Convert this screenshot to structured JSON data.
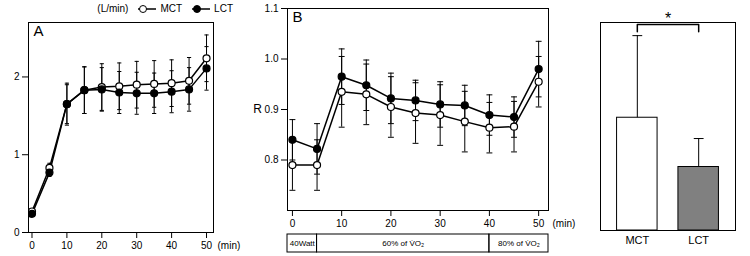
{
  "chart_data": [
    {
      "type": "line",
      "title": "A",
      "y_label": "(L/min)",
      "x_label": "(min)",
      "x": [
        0,
        5,
        10,
        15,
        20,
        25,
        30,
        35,
        40,
        45,
        50
      ],
      "series": [
        {
          "name": "MCT",
          "color": "#000000",
          "marker": "circle_open",
          "values": [
            0.27,
            0.83,
            1.65,
            1.83,
            1.87,
            1.88,
            1.9,
            1.91,
            1.92,
            1.95,
            2.24
          ],
          "errors": [
            0.03,
            0.06,
            0.27,
            0.3,
            0.3,
            0.3,
            0.3,
            0.3,
            0.3,
            0.3,
            0.3
          ]
        },
        {
          "name": "LCT",
          "color": "#000000",
          "marker": "circle_filled",
          "values": [
            0.24,
            0.77,
            1.65,
            1.83,
            1.84,
            1.8,
            1.79,
            1.79,
            1.81,
            1.84,
            2.11
          ],
          "errors": [
            0.03,
            0.05,
            0.25,
            0.3,
            0.28,
            0.27,
            0.27,
            0.26,
            0.27,
            0.28,
            0.28
          ]
        }
      ],
      "xlim": [
        -1,
        52
      ],
      "xticks": [
        0,
        10,
        20,
        30,
        40,
        50
      ],
      "ylim": [
        0,
        2.7
      ],
      "yticks": [
        0,
        1,
        2
      ],
      "legend": "top-right"
    },
    {
      "type": "line",
      "title": "B",
      "y_label": "R",
      "x_label": "(min)",
      "x": [
        0,
        5,
        10,
        15,
        20,
        25,
        30,
        35,
        40,
        45,
        50
      ],
      "series": [
        {
          "name": "MCT",
          "color": "#000000",
          "marker": "circle_open",
          "values": [
            0.79,
            0.79,
            0.935,
            0.93,
            0.905,
            0.893,
            0.889,
            0.876,
            0.864,
            0.866,
            0.955
          ],
          "errors": [
            0.05,
            0.05,
            0.07,
            0.06,
            0.06,
            0.06,
            0.06,
            0.06,
            0.05,
            0.05,
            0.05
          ]
        },
        {
          "name": "LCT",
          "color": "#000000",
          "marker": "circle_filled",
          "values": [
            0.84,
            0.822,
            0.965,
            0.948,
            0.922,
            0.918,
            0.91,
            0.908,
            0.889,
            0.885,
            0.98
          ],
          "errors": [
            0.04,
            0.05,
            0.055,
            0.05,
            0.05,
            0.04,
            0.045,
            0.04,
            0.04,
            0.04,
            0.055
          ]
        }
      ],
      "xlim": [
        -1,
        52
      ],
      "xticks": [
        0,
        10,
        20,
        30,
        40,
        50
      ],
      "ylim": [
        0.7,
        1.1
      ],
      "yticks": [
        0.8,
        0.9,
        {
          "value": 1,
          "label": "1.0"
        },
        1.1
      ],
      "phases": [
        {
          "label": "40Watt",
          "start": -1,
          "end": 5
        },
        {
          "label": "60% of V̇O₂",
          "start": 5,
          "end": 40
        },
        {
          "label": "80% of V̇O₂",
          "start": 40,
          "end": 52
        }
      ]
    },
    {
      "type": "bar",
      "categories": [
        "MCT",
        "LCT"
      ],
      "values": [
        103,
        58
      ],
      "errors": [
        75,
        26
      ],
      "colors": [
        "#ffffff",
        "#808080"
      ],
      "ylim": [
        0,
        190
      ],
      "yticks": [],
      "tick_labels": "x",
      "annotation": "*"
    }
  ]
}
